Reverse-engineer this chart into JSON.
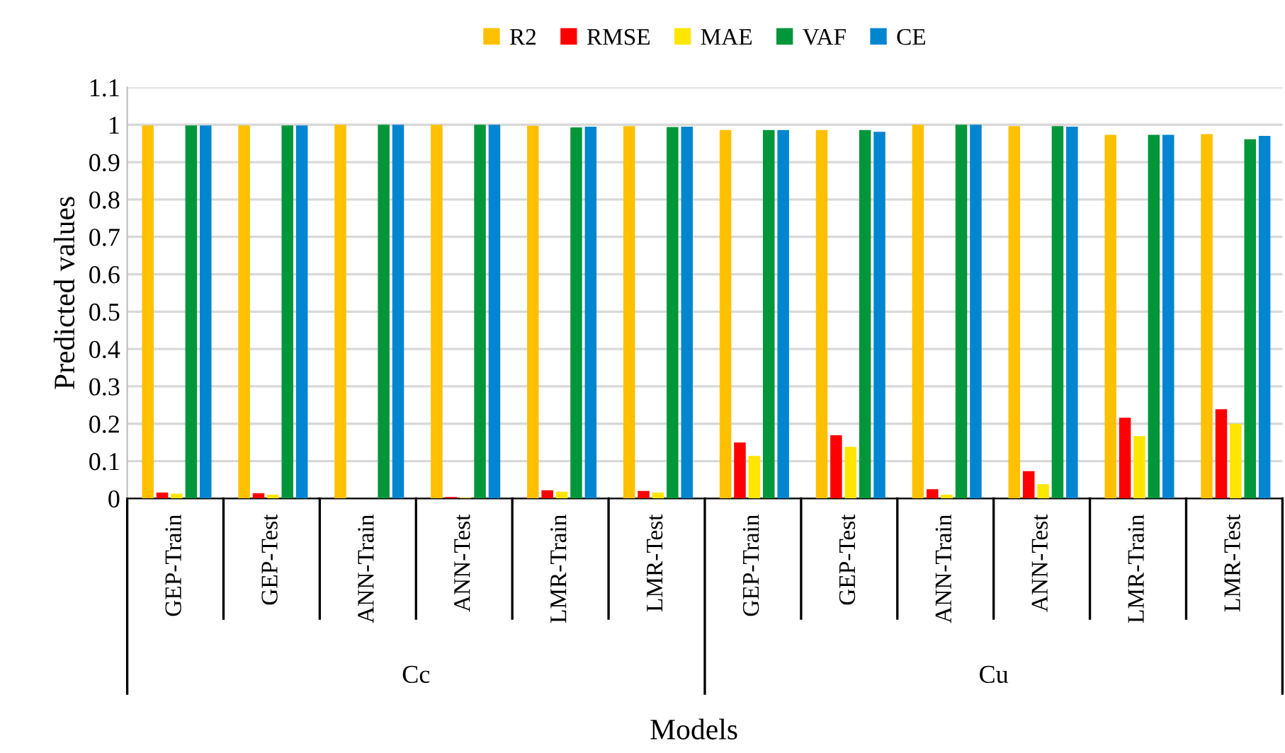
{
  "chart_data": {
    "type": "bar",
    "xlabel": "Models",
    "ylabel": "Predicted values",
    "categories": [
      "GEP-Train",
      "GEP-Test",
      "ANN-Train",
      "ANN-Test",
      "LMR-Train",
      "LMR-Test",
      "GEP-Train",
      "GEP-Test",
      "ANN-Train",
      "ANN-Test",
      "LMR-Train",
      "LMR-Test"
    ],
    "series": [
      {
        "name": "R2",
        "color": "#ffc000",
        "values": [
          0.998,
          0.998,
          1.0,
          1.0,
          0.997,
          0.996,
          0.986,
          0.986,
          1.0,
          0.996,
          0.973,
          0.975
        ]
      },
      {
        "name": "RMSE",
        "color": "#ff0000",
        "values": [
          0.016,
          0.014,
          null,
          0.004,
          0.022,
          0.02,
          0.15,
          0.169,
          0.025,
          0.073,
          0.216,
          0.239
        ]
      },
      {
        "name": "MAE",
        "color": "#ffe600",
        "values": [
          0.013,
          0.01,
          null,
          0.002,
          0.018,
          0.016,
          0.114,
          0.138,
          0.01,
          0.038,
          0.167,
          0.2
        ]
      },
      {
        "name": "VAF",
        "color": "#00963a",
        "values": [
          0.998,
          0.998,
          1.0,
          1.0,
          0.993,
          0.994,
          0.986,
          0.986,
          1.0,
          0.996,
          0.973,
          0.961
        ]
      },
      {
        "name": "CE",
        "color": "#0085d0",
        "values": [
          0.998,
          0.998,
          1.0,
          1.0,
          0.995,
          0.995,
          0.986,
          0.981,
          1.0,
          0.995,
          0.973,
          0.97
        ]
      }
    ],
    "annotations": [
      "Cc",
      "Cu"
    ],
    "ylim": [
      0,
      1.1
    ],
    "yticks": [
      0,
      0.1,
      0.2,
      0.3,
      0.4,
      0.5,
      0.6,
      0.7,
      0.8,
      0.9,
      1,
      1.1
    ],
    "grid": "y",
    "legend": "top"
  }
}
